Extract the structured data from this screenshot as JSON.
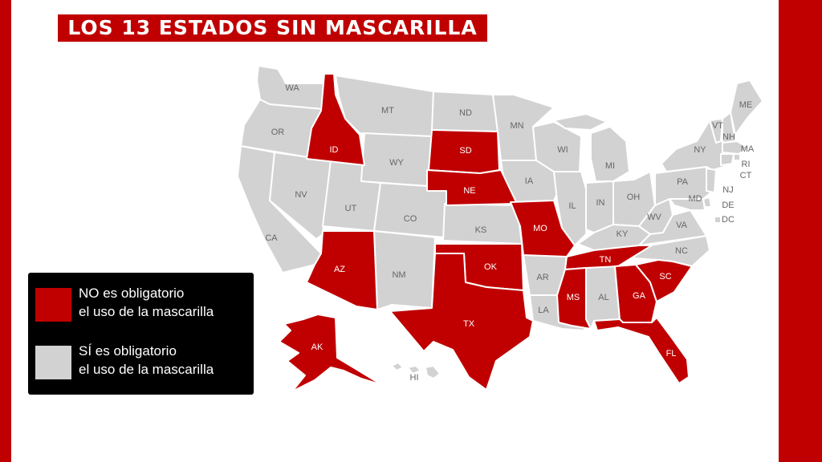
{
  "title": "LOS 13 ESTADOS SIN MASCARILLA",
  "colors": {
    "no_mask": "#c00000",
    "mask": "#d2d2d2",
    "frame": "#c00000",
    "legend_bg": "#000000"
  },
  "legend": [
    {
      "line1": "NO es obligatorio",
      "line2": "el uso de la mascarilla",
      "color": "#c00000"
    },
    {
      "line1": "SÍ es obligatorio",
      "line2": "el uso de la mascarilla",
      "color": "#d2d2d2"
    }
  ],
  "states_no_mask": [
    "ID",
    "SD",
    "NE",
    "MO",
    "AZ",
    "OK",
    "TX",
    "TN",
    "MS",
    "GA",
    "SC",
    "FL",
    "AK"
  ],
  "states_mask": [
    "WA",
    "OR",
    "CA",
    "NV",
    "UT",
    "MT",
    "WY",
    "CO",
    "NM",
    "ND",
    "MN",
    "IA",
    "KS",
    "WI",
    "IL",
    "MI",
    "IN",
    "OH",
    "KY",
    "WV",
    "VA",
    "NC",
    "PA",
    "NY",
    "VT",
    "NH",
    "ME",
    "MA",
    "RI",
    "CT",
    "NJ",
    "DE",
    "DC",
    "MD",
    "AR",
    "LA",
    "AL",
    "HI"
  ]
}
